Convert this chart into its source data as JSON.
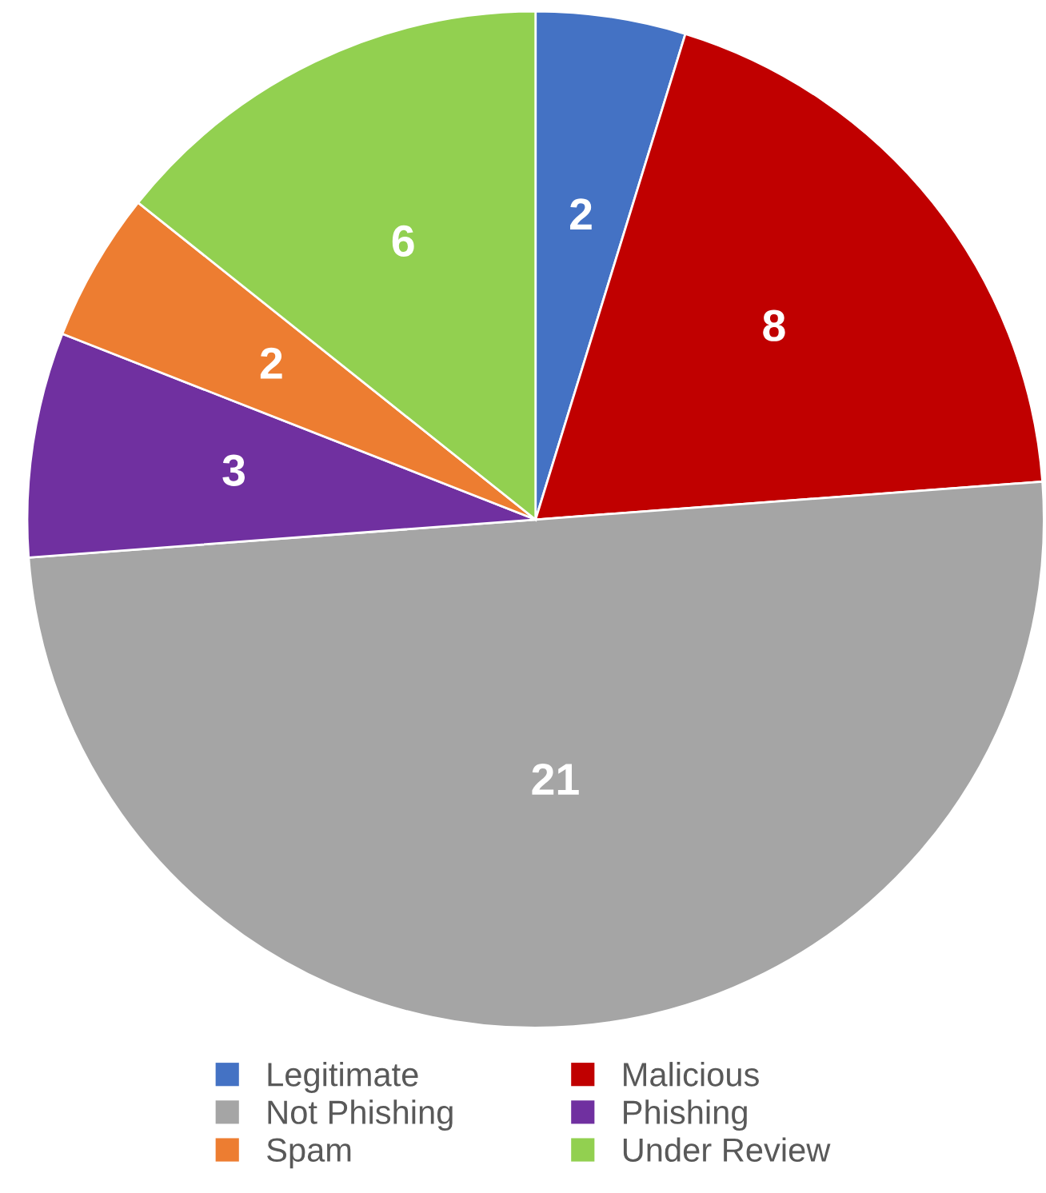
{
  "chart_data": {
    "type": "pie",
    "categories": [
      "Legitimate",
      "Malicious",
      "Not Phishing",
      "Phishing",
      "Spam",
      "Under Review"
    ],
    "values": [
      2,
      8,
      21,
      3,
      2,
      6
    ],
    "colors": [
      "#4472c4",
      "#c00000",
      "#a5a5a5",
      "#7030a0",
      "#ed7d31",
      "#92d050"
    ],
    "data_labels": true,
    "legend": "bottom"
  }
}
